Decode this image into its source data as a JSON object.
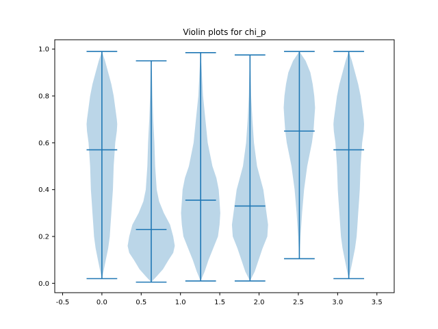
{
  "chart_data": {
    "type": "violin",
    "title": "Violin plots for chi_p",
    "xlabel": "",
    "ylabel": "",
    "xlim": [
      -0.6,
      3.72
    ],
    "ylim": [
      -0.04,
      1.04
    ],
    "x_ticks": [
      "-0.5",
      "0.0",
      "0.5",
      "1.0",
      "1.5",
      "2.0",
      "2.5",
      "3.0",
      "3.5"
    ],
    "x_tick_values": [
      -0.5,
      0.0,
      0.5,
      1.0,
      1.5,
      2.0,
      2.5,
      3.0,
      3.5
    ],
    "y_ticks": [
      "0.0",
      "0.2",
      "0.4",
      "0.6",
      "0.8",
      "1.0"
    ],
    "y_tick_values": [
      0.0,
      0.2,
      0.4,
      0.6,
      0.8,
      1.0
    ],
    "grid": false,
    "colors": {
      "body": "#1f77b4",
      "body_alpha": 0.3,
      "lines": "#1f77b4"
    },
    "violins": [
      {
        "position": 0.0,
        "min": 0.02,
        "mean": 0.57,
        "max": 0.99,
        "profile": [
          [
            0.02,
            0.0
          ],
          [
            0.05,
            0.02
          ],
          [
            0.1,
            0.05
          ],
          [
            0.15,
            0.08
          ],
          [
            0.2,
            0.1
          ],
          [
            0.25,
            0.11
          ],
          [
            0.3,
            0.12
          ],
          [
            0.35,
            0.13
          ],
          [
            0.4,
            0.14
          ],
          [
            0.5,
            0.15
          ],
          [
            0.6,
            0.17
          ],
          [
            0.65,
            0.19
          ],
          [
            0.68,
            0.195
          ],
          [
            0.7,
            0.19
          ],
          [
            0.75,
            0.17
          ],
          [
            0.8,
            0.15
          ],
          [
            0.85,
            0.12
          ],
          [
            0.9,
            0.08
          ],
          [
            0.95,
            0.04
          ],
          [
            0.99,
            0.0
          ]
        ]
      },
      {
        "position": 0.628,
        "min": 0.005,
        "mean": 0.23,
        "max": 0.95,
        "profile": [
          [
            0.005,
            0.0
          ],
          [
            0.03,
            0.07
          ],
          [
            0.06,
            0.15
          ],
          [
            0.1,
            0.22
          ],
          [
            0.13,
            0.28
          ],
          [
            0.16,
            0.3
          ],
          [
            0.2,
            0.28
          ],
          [
            0.25,
            0.24
          ],
          [
            0.3,
            0.16
          ],
          [
            0.35,
            0.1
          ],
          [
            0.4,
            0.07
          ],
          [
            0.5,
            0.05
          ],
          [
            0.6,
            0.04
          ],
          [
            0.7,
            0.025
          ],
          [
            0.8,
            0.015
          ],
          [
            0.9,
            0.008
          ],
          [
            0.95,
            0.0
          ]
        ]
      },
      {
        "position": 1.257,
        "min": 0.01,
        "mean": 0.355,
        "max": 0.985,
        "profile": [
          [
            0.01,
            0.0
          ],
          [
            0.05,
            0.05
          ],
          [
            0.1,
            0.1
          ],
          [
            0.15,
            0.16
          ],
          [
            0.2,
            0.22
          ],
          [
            0.25,
            0.24
          ],
          [
            0.3,
            0.25
          ],
          [
            0.35,
            0.24
          ],
          [
            0.4,
            0.23
          ],
          [
            0.45,
            0.2
          ],
          [
            0.5,
            0.15
          ],
          [
            0.6,
            0.09
          ],
          [
            0.7,
            0.06
          ],
          [
            0.8,
            0.03
          ],
          [
            0.9,
            0.015
          ],
          [
            0.985,
            0.0
          ]
        ]
      },
      {
        "position": 1.885,
        "min": 0.01,
        "mean": 0.33,
        "max": 0.975,
        "profile": [
          [
            0.01,
            0.0
          ],
          [
            0.05,
            0.06
          ],
          [
            0.1,
            0.11
          ],
          [
            0.15,
            0.16
          ],
          [
            0.2,
            0.22
          ],
          [
            0.25,
            0.23
          ],
          [
            0.3,
            0.21
          ],
          [
            0.35,
            0.19
          ],
          [
            0.4,
            0.17
          ],
          [
            0.45,
            0.13
          ],
          [
            0.5,
            0.09
          ],
          [
            0.6,
            0.05
          ],
          [
            0.7,
            0.03
          ],
          [
            0.8,
            0.015
          ],
          [
            0.9,
            0.008
          ],
          [
            0.975,
            0.0
          ]
        ]
      },
      {
        "position": 2.513,
        "min": 0.105,
        "mean": 0.65,
        "max": 0.99,
        "profile": [
          [
            0.105,
            0.0
          ],
          [
            0.15,
            0.008
          ],
          [
            0.2,
            0.015
          ],
          [
            0.3,
            0.035
          ],
          [
            0.4,
            0.06
          ],
          [
            0.5,
            0.1
          ],
          [
            0.6,
            0.16
          ],
          [
            0.65,
            0.18
          ],
          [
            0.7,
            0.19
          ],
          [
            0.75,
            0.2
          ],
          [
            0.8,
            0.19
          ],
          [
            0.85,
            0.17
          ],
          [
            0.9,
            0.14
          ],
          [
            0.95,
            0.08
          ],
          [
            0.99,
            0.0
          ]
        ]
      },
      {
        "position": 3.142,
        "min": 0.02,
        "mean": 0.57,
        "max": 0.99,
        "profile": [
          [
            0.02,
            0.0
          ],
          [
            0.05,
            0.02
          ],
          [
            0.1,
            0.05
          ],
          [
            0.15,
            0.08
          ],
          [
            0.2,
            0.1
          ],
          [
            0.25,
            0.11
          ],
          [
            0.3,
            0.12
          ],
          [
            0.35,
            0.13
          ],
          [
            0.4,
            0.14
          ],
          [
            0.5,
            0.15
          ],
          [
            0.6,
            0.17
          ],
          [
            0.65,
            0.19
          ],
          [
            0.68,
            0.195
          ],
          [
            0.7,
            0.19
          ],
          [
            0.75,
            0.17
          ],
          [
            0.8,
            0.15
          ],
          [
            0.85,
            0.12
          ],
          [
            0.9,
            0.08
          ],
          [
            0.95,
            0.04
          ],
          [
            0.99,
            0.0
          ]
        ]
      }
    ]
  }
}
